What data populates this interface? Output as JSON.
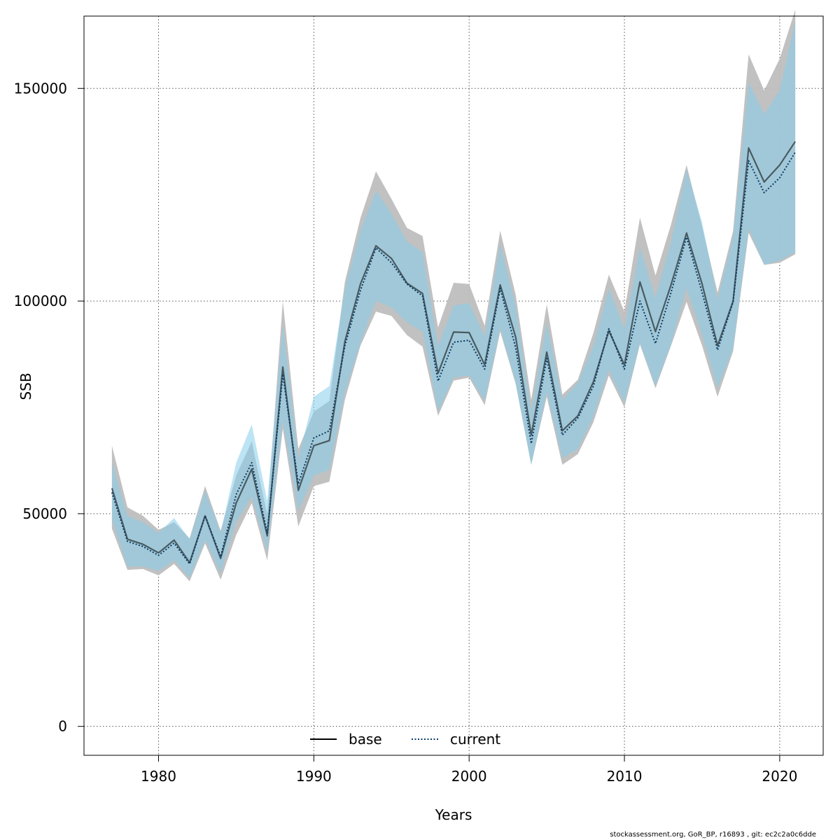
{
  "chart_data": {
    "type": "line",
    "xlabel": "Years",
    "ylabel": "SSB",
    "xlim": [
      1975.2,
      2022.8
    ],
    "ylim": [
      -6800,
      167000
    ],
    "xticks": [
      1980,
      1990,
      2000,
      2010,
      2020
    ],
    "yticks": [
      0,
      50000,
      100000,
      150000
    ],
    "grid": true,
    "legend_position": "bottom",
    "x": [
      1977,
      1978,
      1979,
      1980,
      1981,
      1982,
      1983,
      1984,
      1985,
      1986,
      1987,
      1988,
      1989,
      1990,
      1991,
      1992,
      1993,
      1994,
      1995,
      1996,
      1997,
      1998,
      1999,
      2000,
      2001,
      2002,
      2003,
      2004,
      2005,
      2006,
      2007,
      2008,
      2009,
      2010,
      2011,
      2012,
      2013,
      2014,
      2015,
      2016,
      2017,
      2018,
      2019,
      2020,
      2021
    ],
    "series": [
      {
        "name": "base",
        "line_style": "solid",
        "line_color": "#000000",
        "band_color": "#bebebe",
        "values": [
          56000,
          44000,
          42800,
          40800,
          43800,
          38500,
          49500,
          39500,
          52500,
          60500,
          44800,
          84500,
          55500,
          66000,
          67200,
          90500,
          104000,
          113000,
          110000,
          104200,
          101800,
          83000,
          92700,
          92600,
          85000,
          103800,
          91500,
          68500,
          88000,
          69500,
          73000,
          81000,
          93000,
          85000,
          104500,
          92800,
          103800,
          116000,
          104000,
          89500,
          100000,
          136000,
          128000,
          132000,
          137500
        ],
        "upper": [
          66000,
          51500,
          49500,
          46200,
          48000,
          44200,
          56500,
          46000,
          59000,
          67000,
          49800,
          100000,
          65200,
          74000,
          76500,
          104500,
          119500,
          130500,
          124000,
          117200,
          115300,
          93800,
          104300,
          104000,
          94200,
          116500,
          101500,
          76800,
          99200,
          78000,
          81500,
          92500,
          106200,
          97500,
          119600,
          106000,
          118000,
          132000,
          117500,
          102000,
          116500,
          158000,
          149500,
          157000,
          168500
        ],
        "lower": [
          46500,
          36800,
          37000,
          35500,
          38200,
          34100,
          43000,
          34500,
          45000,
          52500,
          39000,
          70000,
          47000,
          56500,
          57500,
          76800,
          89500,
          97500,
          96500,
          92000,
          89300,
          73000,
          81300,
          82000,
          75500,
          92800,
          80500,
          61500,
          77500,
          61500,
          64000,
          71500,
          82500,
          75000,
          89800,
          79500,
          89500,
          99800,
          89500,
          77500,
          88200,
          116000,
          108500,
          109000,
          111000
        ]
      },
      {
        "name": "current",
        "line_style": "dotted",
        "line_color": "#0a3a66",
        "band_color": "#87ceeb",
        "values": [
          55000,
          43500,
          42300,
          40200,
          43100,
          38200,
          49500,
          39900,
          54500,
          62000,
          45500,
          82800,
          57000,
          67800,
          69500,
          89500,
          102500,
          112500,
          109000,
          104000,
          101200,
          81200,
          90300,
          90800,
          84000,
          103000,
          89000,
          66500,
          86500,
          68500,
          72500,
          80000,
          93500,
          84000,
          100000,
          90000,
          102000,
          115000,
          102000,
          88500,
          99800,
          133000,
          125500,
          129000,
          135000
        ],
        "upper": [
          62000,
          49500,
          48000,
          45500,
          49000,
          44000,
          55500,
          45500,
          62000,
          71000,
          53000,
          94500,
          63000,
          77500,
          80000,
          103000,
          116500,
          126000,
          120500,
          114000,
          111500,
          89500,
          99000,
          99500,
          91800,
          113500,
          99000,
          74000,
          95000,
          76800,
          80800,
          89500,
          103000,
          93500,
          112500,
          100800,
          114000,
          131000,
          118500,
          100500,
          115000,
          151500,
          144000,
          149500,
          166000
        ],
        "lower": [
          48500,
          37500,
          37600,
          36500,
          39000,
          34900,
          43800,
          36000,
          48000,
          54000,
          41000,
          71800,
          50500,
          59000,
          60300,
          78500,
          90000,
          100000,
          98500,
          95000,
          92800,
          74000,
          82000,
          82500,
          76500,
          93500,
          80800,
          61500,
          78500,
          63000,
          65200,
          72800,
          83800,
          76000,
          90000,
          80000,
          89800,
          103000,
          92000,
          79500,
          88800,
          117000,
          108500,
          109500,
          111500
        ]
      }
    ]
  },
  "footer_text": "stockassessment.org, GoR_BP, r16893 , git: ec2c2a0c6dde"
}
